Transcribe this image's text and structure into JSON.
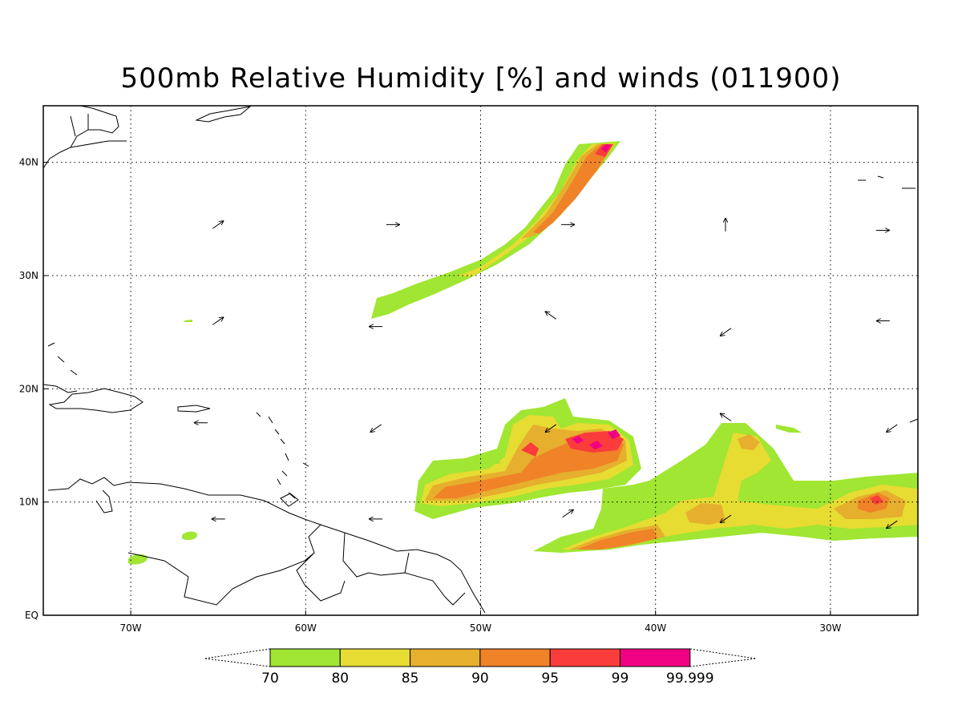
{
  "title": "500mb Relative Humidity [%] and winds (011900)",
  "map": {
    "lon_min": -75,
    "lon_max": -25,
    "lat_min": 0,
    "lat_max": 45,
    "lon_ticks": [
      {
        "value": -70,
        "label": "70W"
      },
      {
        "value": -60,
        "label": "60W"
      },
      {
        "value": -50,
        "label": "50W"
      },
      {
        "value": -40,
        "label": "40W"
      },
      {
        "value": -30,
        "label": "30W"
      }
    ],
    "lat_ticks": [
      {
        "value": 0,
        "label": "EQ"
      },
      {
        "value": 10,
        "label": "10N"
      },
      {
        "value": 20,
        "label": "20N"
      },
      {
        "value": 30,
        "label": "30N"
      },
      {
        "value": 40,
        "label": "40N"
      }
    ]
  },
  "colorbar": {
    "levels": [
      "70",
      "80",
      "85",
      "90",
      "95",
      "99",
      "99.999"
    ],
    "colors": [
      "#a0e632",
      "#e6dc32",
      "#e6af2d",
      "#f08228",
      "#fa3c3c",
      "#f00082"
    ]
  },
  "chart_data": {
    "type": "heatmap",
    "title": "500mb Relative Humidity [%] and winds (011900)",
    "variable": "500mb relative humidity (%)",
    "contour_levels": [
      70,
      80,
      85,
      90,
      95,
      99,
      99.999
    ],
    "regions": [
      {
        "id": "north-band",
        "lon_range": [
          -59,
          -43
        ],
        "lat_range": [
          26,
          42
        ],
        "max_rh": "99-99.999"
      },
      {
        "id": "central-cluster",
        "lon_range": [
          -54,
          -41
        ],
        "lat_range": [
          8,
          19
        ],
        "max_rh": "99-99.999"
      },
      {
        "id": "southern-band",
        "lon_range": [
          -44,
          -25
        ],
        "lat_range": [
          6,
          17
        ],
        "max_rh": "95-99"
      },
      {
        "id": "small-patch-1",
        "lon": -65.5,
        "lat": 7
      },
      {
        "id": "small-patch-2",
        "lon": -70.5,
        "lat": 5
      }
    ],
    "wind_vectors": [
      {
        "lon": -65,
        "lat": 34.5,
        "dir": "NE"
      },
      {
        "lon": -55,
        "lat": 34.5,
        "dir": "E"
      },
      {
        "lon": -45,
        "lat": 34.5,
        "dir": "E"
      },
      {
        "lon": -36,
        "lat": 34.5,
        "dir": "N"
      },
      {
        "lon": -27,
        "lat": 34,
        "dir": "E"
      },
      {
        "lon": -65,
        "lat": 26,
        "dir": "NE"
      },
      {
        "lon": -56,
        "lat": 25.5,
        "dir": "W"
      },
      {
        "lon": -46,
        "lat": 26.5,
        "dir": "NW"
      },
      {
        "lon": -36,
        "lat": 25,
        "dir": "SW"
      },
      {
        "lon": -27,
        "lat": 26,
        "dir": "W"
      },
      {
        "lon": -66,
        "lat": 17,
        "dir": "W"
      },
      {
        "lon": -56,
        "lat": 16.5,
        "dir": "SW"
      },
      {
        "lon": -46,
        "lat": 16.5,
        "dir": "SW"
      },
      {
        "lon": -36,
        "lat": 17.5,
        "dir": "NW"
      },
      {
        "lon": -26.5,
        "lat": 16.5,
        "dir": "SW"
      },
      {
        "lon": -65,
        "lat": 8.5,
        "dir": "W"
      },
      {
        "lon": -56,
        "lat": 8.5,
        "dir": "W"
      },
      {
        "lon": -45,
        "lat": 9,
        "dir": "NE"
      },
      {
        "lon": -36,
        "lat": 8.5,
        "dir": "SW"
      },
      {
        "lon": -26.5,
        "lat": 8,
        "dir": "SW"
      }
    ]
  }
}
